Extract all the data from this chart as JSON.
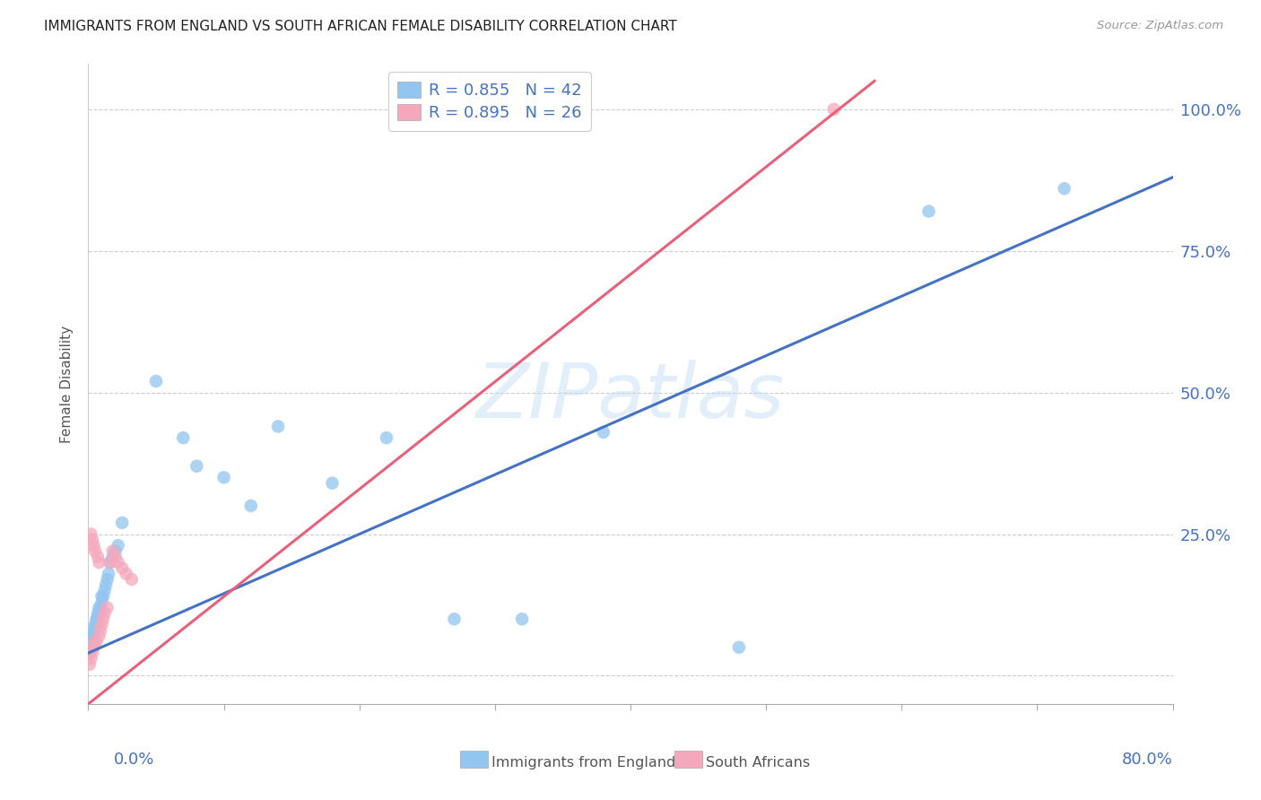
{
  "title": "IMMIGRANTS FROM ENGLAND VS SOUTH AFRICAN FEMALE DISABILITY CORRELATION CHART",
  "source": "Source: ZipAtlas.com",
  "ylabel": "Female Disability",
  "legend_blue_label": "Immigrants from England",
  "legend_pink_label": "South Africans",
  "blue_color": "#92C5F0",
  "pink_color": "#F5A8BC",
  "blue_line_color": "#4472C4",
  "pink_line_color": "#E8607A",
  "watermark": "ZIPatlas",
  "blue_scatter_x": [
    0.001,
    0.002,
    0.002,
    0.003,
    0.003,
    0.004,
    0.004,
    0.005,
    0.005,
    0.006,
    0.006,
    0.007,
    0.007,
    0.008,
    0.008,
    0.009,
    0.01,
    0.01,
    0.011,
    0.012,
    0.013,
    0.014,
    0.015,
    0.016,
    0.018,
    0.02,
    0.022,
    0.025,
    0.05,
    0.07,
    0.08,
    0.1,
    0.12,
    0.14,
    0.18,
    0.22,
    0.27,
    0.32,
    0.38,
    0.48,
    0.62,
    0.72
  ],
  "blue_scatter_y": [
    0.04,
    0.05,
    0.06,
    0.06,
    0.07,
    0.07,
    0.08,
    0.08,
    0.09,
    0.09,
    0.1,
    0.1,
    0.11,
    0.11,
    0.12,
    0.12,
    0.13,
    0.14,
    0.14,
    0.15,
    0.16,
    0.17,
    0.18,
    0.2,
    0.21,
    0.22,
    0.23,
    0.27,
    0.52,
    0.42,
    0.37,
    0.35,
    0.3,
    0.44,
    0.34,
    0.42,
    0.1,
    0.1,
    0.43,
    0.05,
    0.82,
    0.86
  ],
  "pink_scatter_x": [
    0.001,
    0.002,
    0.002,
    0.003,
    0.003,
    0.004,
    0.004,
    0.005,
    0.005,
    0.006,
    0.007,
    0.008,
    0.008,
    0.009,
    0.01,
    0.011,
    0.012,
    0.014,
    0.016,
    0.018,
    0.02,
    0.022,
    0.025,
    0.028,
    0.032,
    0.55
  ],
  "pink_scatter_y": [
    0.02,
    0.03,
    0.25,
    0.04,
    0.24,
    0.05,
    0.23,
    0.06,
    0.22,
    0.06,
    0.21,
    0.07,
    0.2,
    0.08,
    0.09,
    0.1,
    0.11,
    0.12,
    0.2,
    0.22,
    0.21,
    0.2,
    0.19,
    0.18,
    0.17,
    1.0
  ],
  "xlim": [
    0.0,
    0.8
  ],
  "ylim": [
    -0.05,
    1.08
  ],
  "y_axis_min": 0.0,
  "y_axis_max": 1.0,
  "background_color": "#ffffff",
  "grid_color": "#cccccc",
  "blue_line_x": [
    0.0,
    0.8
  ],
  "blue_line_y": [
    0.04,
    0.88
  ],
  "pink_line_x": [
    0.0,
    0.58
  ],
  "pink_line_y": [
    -0.05,
    1.05
  ]
}
